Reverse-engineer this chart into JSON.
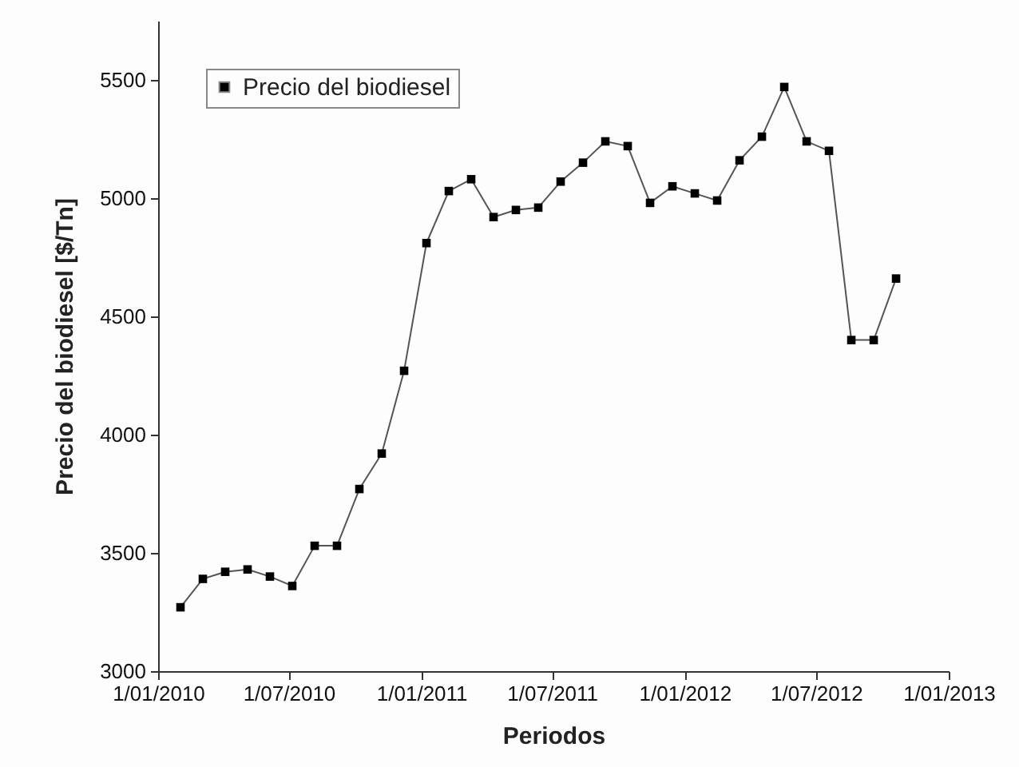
{
  "chart_data": {
    "type": "line",
    "xlabel": "Periodos",
    "ylabel": "Precio del biodiesel [$/Tn]",
    "x": [
      "2010-02-01",
      "2010-03-04",
      "2010-04-04",
      "2010-05-05",
      "2010-06-05",
      "2010-07-06",
      "2010-08-06",
      "2010-09-06",
      "2010-10-07",
      "2010-11-07",
      "2010-12-08",
      "2011-01-08",
      "2011-02-08",
      "2011-03-11",
      "2011-04-11",
      "2011-05-12",
      "2011-06-12",
      "2011-07-13",
      "2011-08-13",
      "2011-09-13",
      "2011-10-14",
      "2011-11-14",
      "2011-12-15",
      "2012-01-15",
      "2012-02-15",
      "2012-03-17",
      "2012-04-17",
      "2012-05-18",
      "2012-06-18",
      "2012-07-19",
      "2012-08-19",
      "2012-09-19",
      "2012-10-20"
    ],
    "series": [
      {
        "name": "Precio del biodiesel",
        "color": "#000000",
        "values": [
          3270,
          3390,
          3420,
          3430,
          3400,
          3360,
          3530,
          3530,
          3770,
          3920,
          4270,
          4810,
          5030,
          5080,
          4920,
          4950,
          4960,
          5070,
          5150,
          5240,
          5220,
          4980,
          5050,
          5020,
          4990,
          5160,
          5260,
          5470,
          5240,
          5200,
          4400,
          4400,
          4660
        ]
      }
    ],
    "xlim": [
      "2010-01-01",
      "2013-01-01"
    ],
    "xticks": [
      {
        "value": "2010-01-01",
        "label": "1/01/2010"
      },
      {
        "value": "2010-07-01",
        "label": "1/07/2010"
      },
      {
        "value": "2011-01-01",
        "label": "1/01/2011"
      },
      {
        "value": "2011-07-01",
        "label": "1/07/2011"
      },
      {
        "value": "2012-01-01",
        "label": "1/01/2012"
      },
      {
        "value": "2012-07-01",
        "label": "1/07/2012"
      },
      {
        "value": "2013-01-01",
        "label": "1/01/2013"
      }
    ],
    "ylim": [
      3000,
      5750
    ],
    "yticks": [
      3000,
      3500,
      4000,
      4500,
      5000,
      5500
    ],
    "grid": false,
    "legend": "top left",
    "marker": "square",
    "line_style": "solid"
  }
}
